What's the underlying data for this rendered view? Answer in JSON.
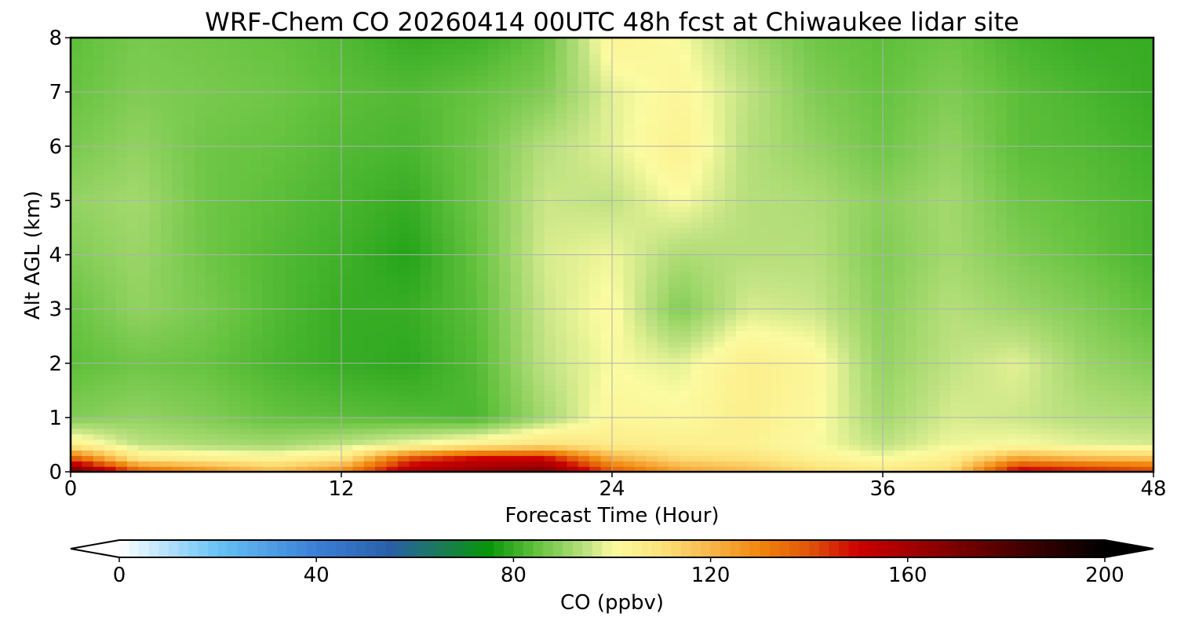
{
  "chart_data": {
    "type": "heatmap",
    "title": "WRF-Chem CO  20260414 00UTC 48h fcst at Chiwaukee lidar site",
    "xlabel": "Forecast Time (Hour)",
    "ylabel": "Alt AGL (km)",
    "xlim": [
      0,
      48
    ],
    "ylim": [
      0,
      8
    ],
    "x_ticks": [
      0,
      12,
      24,
      36,
      48
    ],
    "y_ticks": [
      0,
      1,
      2,
      3,
      4,
      5,
      6,
      7,
      8
    ],
    "grid": true,
    "colorbar": {
      "label": "CO  (ppbv)",
      "range": [
        0,
        200
      ],
      "ticks": [
        0,
        40,
        80,
        120,
        160,
        200
      ],
      "extend": "both",
      "colors": [
        {
          "v": 0,
          "c": "#ffffff"
        },
        {
          "v": 20,
          "c": "#66c2f5"
        },
        {
          "v": 40,
          "c": "#3a7fd6"
        },
        {
          "v": 55,
          "c": "#2a5fa8"
        },
        {
          "v": 75,
          "c": "#089608"
        },
        {
          "v": 85,
          "c": "#66c340"
        },
        {
          "v": 95,
          "c": "#bfe282"
        },
        {
          "v": 100,
          "c": "#fbfba0"
        },
        {
          "v": 110,
          "c": "#fde27a"
        },
        {
          "v": 120,
          "c": "#f8b64a"
        },
        {
          "v": 130,
          "c": "#f0860c"
        },
        {
          "v": 140,
          "c": "#e0550a"
        },
        {
          "v": 150,
          "c": "#cc0000"
        },
        {
          "v": 165,
          "c": "#900000"
        },
        {
          "v": 180,
          "c": "#500000"
        },
        {
          "v": 200,
          "c": "#000000"
        }
      ]
    },
    "times": [
      0,
      3,
      6,
      9,
      12,
      15,
      18,
      21,
      24,
      27,
      30,
      33,
      36,
      39,
      42,
      45,
      48
    ],
    "altitudes": [
      0,
      0.25,
      0.5,
      1,
      2,
      3,
      4,
      5,
      6,
      7,
      8
    ],
    "values": [
      [
        178,
        140,
        130,
        120,
        130,
        160,
        165,
        172,
        140,
        125,
        120,
        112,
        108,
        112,
        155,
        150,
        145
      ],
      [
        140,
        108,
        105,
        103,
        108,
        140,
        150,
        150,
        122,
        112,
        110,
        104,
        100,
        105,
        125,
        120,
        118
      ],
      [
        105,
        95,
        93,
        92,
        95,
        100,
        105,
        110,
        106,
        105,
        104,
        100,
        95,
        99,
        100,
        98,
        97
      ],
      [
        88,
        90,
        88,
        85,
        84,
        83,
        82,
        92,
        102,
        101,
        105,
        101,
        92,
        97,
        96,
        94,
        93
      ],
      [
        84,
        86,
        85,
        82,
        80,
        79,
        83,
        95,
        100,
        98,
        105,
        102,
        90,
        95,
        98,
        91,
        88
      ],
      [
        85,
        90,
        87,
        83,
        80,
        80,
        84,
        96,
        101,
        88,
        97,
        96,
        89,
        94,
        91,
        88,
        84
      ],
      [
        88,
        91,
        86,
        83,
        81,
        78,
        85,
        97,
        99,
        93,
        94,
        94,
        88,
        92,
        88,
        85,
        82
      ],
      [
        90,
        92,
        86,
        84,
        82,
        80,
        86,
        96,
        95,
        100,
        94,
        93,
        89,
        92,
        86,
        84,
        82
      ],
      [
        87,
        90,
        86,
        85,
        83,
        82,
        86,
        94,
        98,
        104,
        94,
        90,
        86,
        90,
        84,
        83,
        81
      ],
      [
        85,
        88,
        87,
        86,
        84,
        83,
        85,
        88,
        98,
        102,
        95,
        88,
        85,
        88,
        84,
        82,
        80
      ],
      [
        84,
        87,
        86,
        85,
        83,
        80,
        81,
        85,
        103,
        100,
        92,
        86,
        84,
        86,
        82,
        80,
        80
      ]
    ]
  }
}
